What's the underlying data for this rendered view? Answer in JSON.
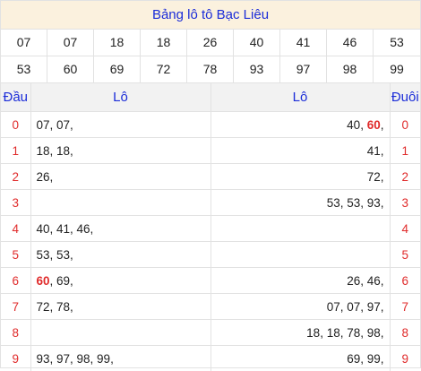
{
  "title": "Bảng lô tô Bạc Liêu",
  "numbers_row1": [
    "07",
    "07",
    "18",
    "18",
    "26",
    "40",
    "41",
    "46",
    "53"
  ],
  "numbers_row2": [
    "53",
    "60",
    "69",
    "72",
    "78",
    "93",
    "97",
    "98",
    "99"
  ],
  "highlight_color": "#e02b2b",
  "headers": {
    "dau": "Đầu",
    "lo_left": "Lô",
    "lo_right": "Lô",
    "duoi": "Đuôi"
  },
  "rows": [
    {
      "dau": "0",
      "left_pre": "",
      "left_hl": "",
      "left_post": "07, 07,",
      "right_pre": "40, ",
      "right_hl": "60",
      "right_post": ",",
      "duoi": "0"
    },
    {
      "dau": "1",
      "left_pre": "",
      "left_hl": "",
      "left_post": "18, 18,",
      "right_pre": "",
      "right_hl": "",
      "right_post": "41,",
      "duoi": "1"
    },
    {
      "dau": "2",
      "left_pre": "",
      "left_hl": "",
      "left_post": "26,",
      "right_pre": "",
      "right_hl": "",
      "right_post": "72,",
      "duoi": "2"
    },
    {
      "dau": "3",
      "left_pre": "",
      "left_hl": "",
      "left_post": "",
      "right_pre": "",
      "right_hl": "",
      "right_post": "53, 53, 93,",
      "duoi": "3"
    },
    {
      "dau": "4",
      "left_pre": "",
      "left_hl": "",
      "left_post": "40, 41, 46,",
      "right_pre": "",
      "right_hl": "",
      "right_post": "",
      "duoi": "4"
    },
    {
      "dau": "5",
      "left_pre": "",
      "left_hl": "",
      "left_post": "53, 53,",
      "right_pre": "",
      "right_hl": "",
      "right_post": "",
      "duoi": "5"
    },
    {
      "dau": "6",
      "left_pre": "",
      "left_hl": "60",
      "left_post": ", 69,",
      "right_pre": "",
      "right_hl": "",
      "right_post": "26, 46,",
      "duoi": "6"
    },
    {
      "dau": "7",
      "left_pre": "",
      "left_hl": "",
      "left_post": "72, 78,",
      "right_pre": "",
      "right_hl": "",
      "right_post": "07, 07, 97,",
      "duoi": "7"
    },
    {
      "dau": "8",
      "left_pre": "",
      "left_hl": "",
      "left_post": "",
      "right_pre": "",
      "right_hl": "",
      "right_post": "18, 18, 78, 98,",
      "duoi": "8"
    },
    {
      "dau": "9",
      "left_pre": "",
      "left_hl": "",
      "left_post": "93, 97, 98, 99,",
      "right_pre": "",
      "right_hl": "",
      "right_post": "69, 99,",
      "duoi": "9"
    }
  ]
}
